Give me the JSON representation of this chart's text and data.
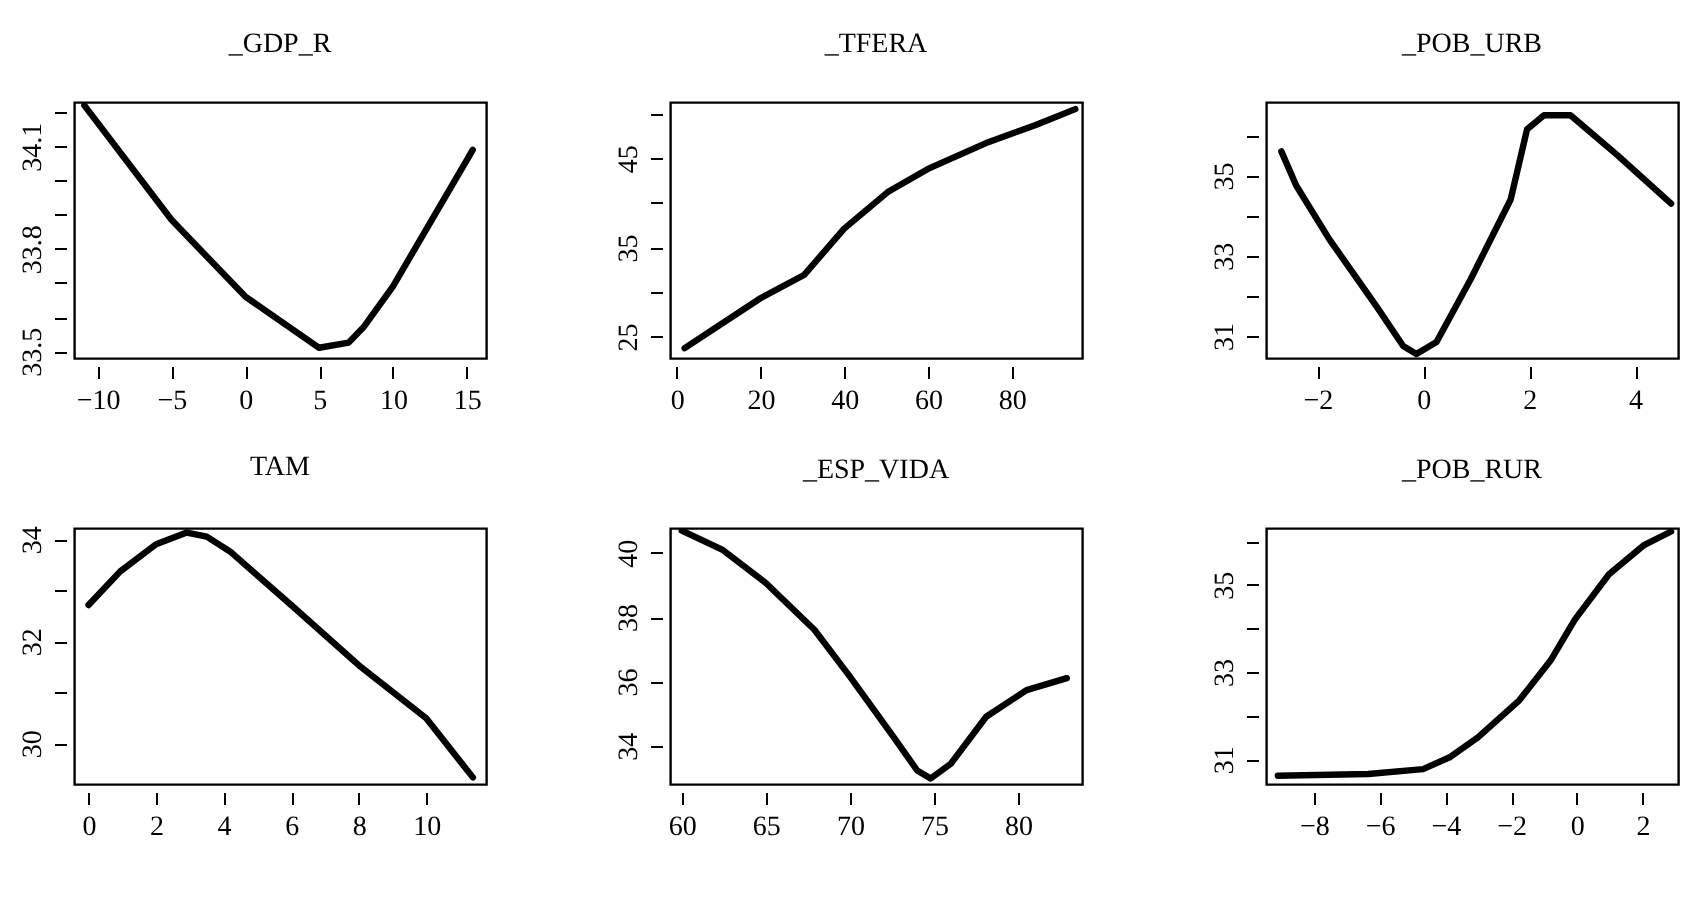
{
  "chart_data": [
    {
      "type": "line",
      "title": "_GDP_R",
      "color": "#000000",
      "x": [
        -10.9,
        -5,
        0,
        5,
        7,
        8,
        10,
        15,
        15.4
      ],
      "values": [
        34.22,
        33.885,
        33.66,
        33.51,
        33.525,
        33.57,
        33.69,
        34.06,
        34.09
      ],
      "xlim": [
        -11.6,
        16.3
      ],
      "ylim": [
        33.48,
        34.23
      ],
      "xticks": [
        -10,
        -5,
        0,
        5,
        10,
        15
      ],
      "yticks": [
        33.5,
        {
          "value": 33.6,
          "label": null
        },
        {
          "value": 33.7,
          "label": null
        },
        33.8,
        {
          "value": 33.9,
          "label": null
        },
        {
          "value": 34.0,
          "label": null
        },
        34.1,
        {
          "value": 34.2,
          "label": null
        }
      ]
    },
    {
      "type": "line",
      "title": "_TFERA",
      "color": "#000000",
      "x": [
        1.9,
        20,
        30.4,
        40,
        50.4,
        60,
        74.4,
        85.6,
        95.2
      ],
      "values": [
        23.7,
        29.3,
        31.9,
        37.1,
        41.2,
        43.8,
        46.8,
        48.7,
        50.5
      ],
      "xlim": [
        -1.6,
        96.8
      ],
      "ylim": [
        22.6,
        51.3
      ],
      "xticks": [
        0,
        20,
        40,
        60,
        80
      ],
      "yticks": [
        25,
        {
          "value": 30,
          "label": null
        },
        35,
        {
          "value": 40,
          "label": null
        },
        45,
        {
          "value": 50,
          "label": null
        }
      ]
    },
    {
      "type": "line",
      "title": "_POB_URB",
      "color": "#000000",
      "x": [
        -2.68,
        -2.4,
        -1.77,
        -0.89,
        -0.38,
        -0.13,
        0.25,
        0.89,
        1.65,
        1.96,
        2.28,
        2.78,
        3.67,
        4.68
      ],
      "values": [
        35.6,
        34.75,
        33.4,
        31.75,
        30.75,
        30.55,
        30.85,
        32.4,
        34.4,
        36.15,
        36.5,
        36.5,
        35.5,
        34.3
      ],
      "xlim": [
        -2.97,
        4.81
      ],
      "ylim": [
        30.45,
        36.83
      ],
      "xticks": [
        -2,
        0,
        2,
        4
      ],
      "yticks": [
        31,
        {
          "value": 32,
          "label": null
        },
        33,
        {
          "value": 34,
          "label": null
        },
        35,
        {
          "value": 36,
          "label": null
        }
      ]
    },
    {
      "type": "line",
      "title": "TAM",
      "color": "#000000",
      "x": [
        0,
        0.94,
        2,
        2.91,
        3.5,
        4.19,
        6,
        8,
        10,
        11.38
      ],
      "values": [
        32.71,
        33.37,
        33.9,
        34.13,
        34.05,
        33.76,
        32.71,
        31.53,
        30.49,
        29.33
      ],
      "xlim": [
        -0.43,
        11.77
      ],
      "ylim": [
        29.2,
        34.22
      ],
      "xticks": [
        0,
        2,
        4,
        6,
        8,
        10
      ],
      "yticks": [
        30,
        {
          "value": 31,
          "label": null
        },
        32,
        {
          "value": 33,
          "label": null
        },
        34
      ]
    },
    {
      "type": "line",
      "title": "_ESP_VIDA",
      "color": "#000000",
      "x": [
        60,
        62.4,
        65,
        67.9,
        70,
        72.6,
        74,
        74.8,
        76,
        78.1,
        80.5,
        82.9
      ],
      "values": [
        40.69,
        40.1,
        39.06,
        37.6,
        36.15,
        34.27,
        33.23,
        32.98,
        33.44,
        34.9,
        35.73,
        36.1
      ],
      "xlim": [
        59.3,
        83.8
      ],
      "ylim": [
        32.81,
        40.77
      ],
      "xticks": [
        60,
        65,
        70,
        75,
        80
      ],
      "yticks": [
        34,
        36,
        38,
        40
      ]
    },
    {
      "type": "line",
      "title": "_POB_RUR",
      "color": "#000000",
      "x": [
        -9.1,
        -6.35,
        -4.68,
        -3.85,
        -3.01,
        -1.75,
        -0.8,
        -0.06,
        0.98,
        2.03,
        2.87
      ],
      "values": [
        30.62,
        30.66,
        30.77,
        31.05,
        31.5,
        32.35,
        33.26,
        34.2,
        35.24,
        35.9,
        36.22
      ],
      "xlim": [
        -9.46,
        3.08
      ],
      "ylim": [
        30.43,
        36.3
      ],
      "xticks": [
        -8,
        -6,
        -4,
        -2,
        0,
        2
      ],
      "yticks": [
        31,
        {
          "value": 32,
          "label": null
        },
        33,
        {
          "value": 34,
          "label": null
        },
        35,
        {
          "value": 36,
          "label": null
        }
      ]
    }
  ]
}
